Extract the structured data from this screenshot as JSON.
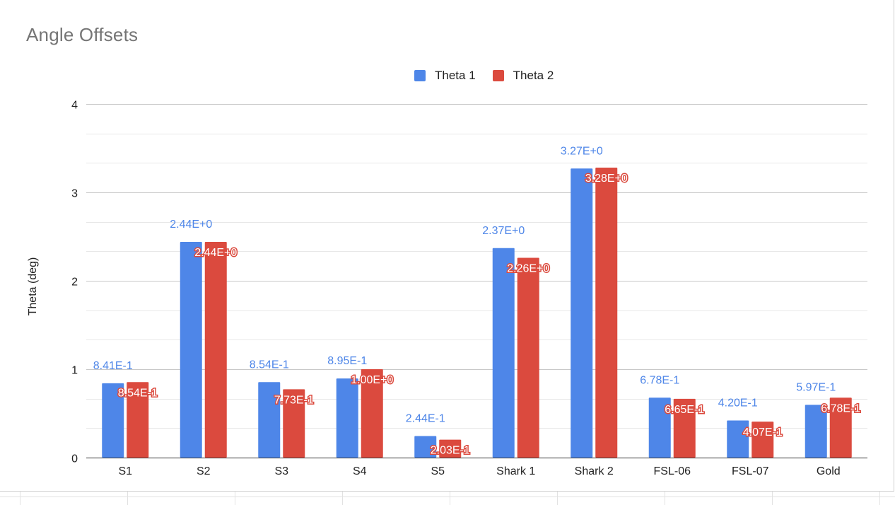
{
  "chart_data": {
    "type": "bar",
    "title": "Angle Offsets",
    "xlabel": "",
    "ylabel": "Theta (deg)",
    "ylim": [
      0,
      4
    ],
    "yticks": [
      "0",
      "1",
      "2",
      "3",
      "4"
    ],
    "grid": true,
    "legend_position": "top",
    "categories": [
      "S1",
      "S2",
      "S3",
      "S4",
      "S5",
      "Shark 1",
      "Shark 2",
      "FSL-06",
      "FSL-07",
      "Gold"
    ],
    "series": [
      {
        "name": "Theta 1",
        "color": "#4e86e8",
        "values": [
          0.841,
          2.44,
          0.854,
          0.895,
          0.244,
          2.37,
          3.27,
          0.678,
          0.42,
          0.597
        ],
        "labels": [
          "8.41E-1",
          "2.44E+0",
          "8.54E-1",
          "8.95E-1",
          "2.44E-1",
          "2.37E+0",
          "3.27E+0",
          "6.78E-1",
          "4.20E-1",
          "5.97E-1"
        ]
      },
      {
        "name": "Theta 2",
        "color": "#db4a3e",
        "values": [
          0.854,
          2.44,
          0.773,
          1.0,
          0.203,
          2.26,
          3.28,
          0.665,
          0.407,
          0.678
        ],
        "labels": [
          "8.54E-1",
          "2.44E+0",
          "7.73E-1",
          "1.00E+0",
          "2.03E-1",
          "2.26E+0",
          "3.28E+0",
          "6.65E-1",
          "4.07E-1",
          "6.78E-1"
        ]
      }
    ]
  }
}
